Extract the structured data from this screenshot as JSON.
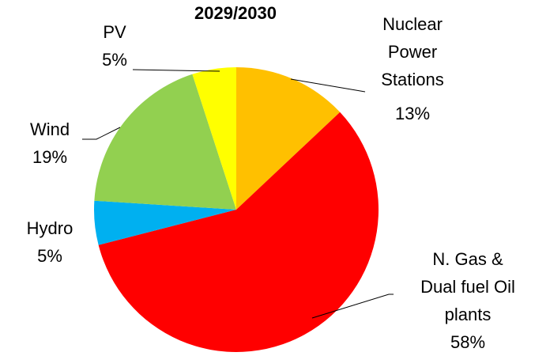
{
  "chart_data": {
    "type": "pie",
    "title": "2029/2030",
    "categories": [
      "Nuclear Power Stations",
      "N. Gas & Dual fuel Oil plants",
      "Hydro",
      "Wind",
      "PV"
    ],
    "values": [
      13,
      58,
      5,
      19,
      5
    ],
    "value_labels": [
      "13%",
      "58%",
      "5%",
      "19%",
      "5%"
    ],
    "colors": [
      "#FFC000",
      "#FF0000",
      "#00B0F0",
      "#92D050",
      "#FFFF00"
    ]
  }
}
